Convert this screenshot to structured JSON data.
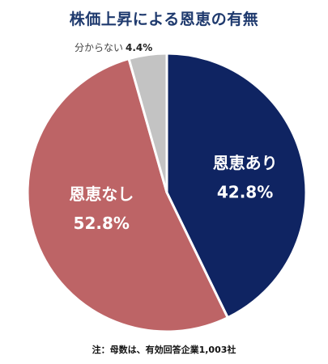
{
  "colors": {
    "title": "#1f3a6e",
    "ari": "#0f2462",
    "nashi": "#bd6466",
    "unknown": "#c3c3c3",
    "outside_label": "#444444",
    "inside_label": "#ffffff"
  },
  "chart_data": {
    "type": "pie",
    "title": "株価上昇による恩恵の有無",
    "slices": [
      {
        "name": "恩恵あり",
        "value": 42.8,
        "value_label": "42.8%",
        "color": "#0f2462"
      },
      {
        "name": "恩恵なし",
        "value": 52.8,
        "value_label": "52.8%",
        "color": "#bd6466"
      },
      {
        "name": "分からない",
        "value": 4.4,
        "value_label": "4.4%",
        "color": "#c3c3c3"
      }
    ],
    "start_angle": "12 o'clock",
    "direction": "clockwise",
    "legend": "none",
    "note": "注：母数は、有効回答企業1,003社"
  }
}
